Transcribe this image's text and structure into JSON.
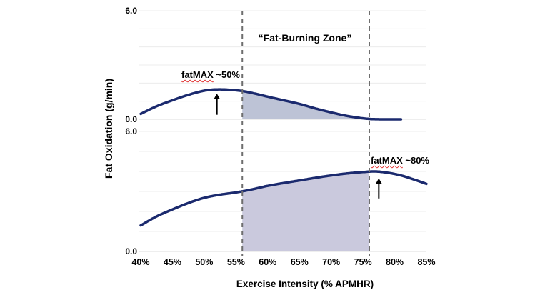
{
  "chart_data": {
    "type": "line",
    "title": "“Fat-Burning Zone”",
    "xlabel": "Exercise Intensity (% APMHR)",
    "ylabel": "Fat Oxidation (g/min)",
    "xlim": [
      40,
      85
    ],
    "x_tick_labels": [
      "40%",
      "45%",
      "50%",
      "55%",
      "60%",
      "65%",
      "70%",
      "75%",
      "80%",
      "85%"
    ],
    "grid": "horizontal-on",
    "legend": "none",
    "fat_burning_zone_pct": [
      56,
      76
    ],
    "panels": [
      {
        "name": "moderate-intensity-fat-oxidation",
        "ylim": [
          0,
          6
        ],
        "ytick_labels": [
          "6.0",
          "0.0"
        ],
        "series": {
          "x": [
            40,
            42.5,
            45,
            47.5,
            50,
            52,
            54,
            56,
            58,
            60,
            62.5,
            65,
            67.5,
            70,
            72,
            74,
            76,
            78,
            81
          ],
          "y": [
            0.3,
            0.72,
            1.05,
            1.35,
            1.58,
            1.65,
            1.63,
            1.56,
            1.42,
            1.25,
            1.05,
            0.85,
            0.6,
            0.38,
            0.22,
            0.1,
            0.02,
            0.0,
            0.0
          ]
        },
        "annotation": {
          "word": "fatMAX",
          "rest": " ~50%",
          "arrow_x_pct": 52,
          "arrow_base_val": 0.25,
          "arrow_tip_val": 1.42
        }
      },
      {
        "name": "high-intensity-fat-oxidation",
        "ylim": [
          0,
          6
        ],
        "ytick_labels": [
          "6.0",
          "0.0"
        ],
        "series": {
          "x": [
            40,
            42.5,
            45,
            47.5,
            50,
            52.5,
            55,
            57.5,
            60,
            62.5,
            65,
            67.5,
            70,
            72.5,
            75,
            77,
            79,
            81,
            83,
            85
          ],
          "y": [
            1.3,
            1.75,
            2.1,
            2.42,
            2.68,
            2.84,
            2.95,
            3.1,
            3.28,
            3.42,
            3.55,
            3.68,
            3.8,
            3.9,
            3.97,
            4.0,
            3.93,
            3.8,
            3.6,
            3.38
          ]
        },
        "annotation": {
          "word": "fatMAX",
          "rest": " ~80%",
          "arrow_x_pct": 77.5,
          "arrow_base_val": 2.65,
          "arrow_tip_val": 3.66
        }
      }
    ],
    "colors": {
      "curve": "#1b2a6e",
      "zone_fill_top": "#bdc3d6",
      "zone_fill_bottom": "#cac9dd",
      "dashed_line": "#6e6e6e",
      "gridline": "#ececec",
      "baseline": "#dcdcdc",
      "arrow": "#000000",
      "misspell_underline": "#e03131",
      "text": "#000000"
    }
  }
}
